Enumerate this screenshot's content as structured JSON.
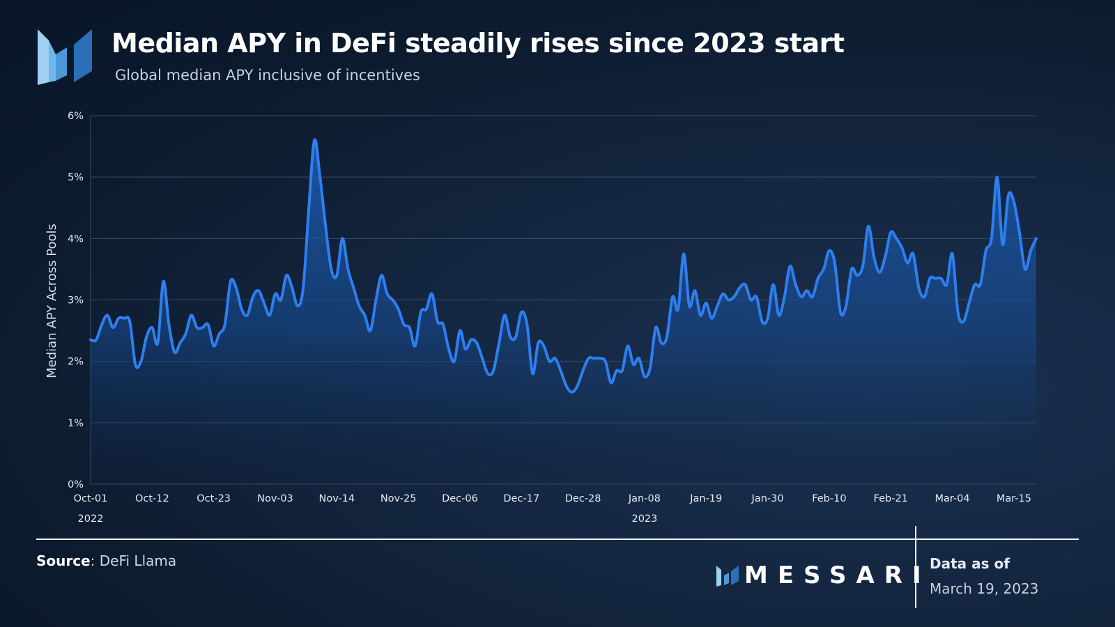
{
  "header": {
    "title": "Median APY in DeFi steadily rises since 2023 start",
    "subtitle": "Global median APY inclusive of incentives",
    "logo_icon": "messari-logo-icon"
  },
  "colors": {
    "line": "#2e7ef0",
    "fill_top": "#1e5fb8",
    "fill_bottom": "#0f2440",
    "grid": "#3a4d66",
    "logo_light": "#9fd0f2",
    "logo_mid": "#4c98d8",
    "logo_dark": "#2a6fb8"
  },
  "footer": {
    "source_label": "Source",
    "source_value": ": DeFi Llama",
    "brand": "MESSARI",
    "data_as_of_label": "Data as of",
    "data_as_of_date": "March 19, 2023"
  },
  "chart_data": {
    "type": "area",
    "title": "Median APY in DeFi steadily rises since 2023 start",
    "subtitle": "Global median APY inclusive of incentives",
    "ylabel": "Median APY Across Pools",
    "xlabel": "",
    "ylim": [
      0,
      6
    ],
    "xlim": [
      "2022-10-01",
      "2023-03-19"
    ],
    "y_ticks": [
      "0%",
      "1%",
      "2%",
      "3%",
      "4%",
      "5%",
      "6%"
    ],
    "x_ticks": [
      {
        "date": "2022-10-01",
        "label": "Oct-01",
        "year": "2022"
      },
      {
        "date": "2022-10-12",
        "label": "Oct-12"
      },
      {
        "date": "2022-10-23",
        "label": "Oct-23"
      },
      {
        "date": "2022-11-03",
        "label": "Nov-03"
      },
      {
        "date": "2022-11-14",
        "label": "Nov-14"
      },
      {
        "date": "2022-11-25",
        "label": "Nov-25"
      },
      {
        "date": "2022-12-06",
        "label": "Dec-06"
      },
      {
        "date": "2022-12-17",
        "label": "Dec-17"
      },
      {
        "date": "2022-12-28",
        "label": "Dec-28"
      },
      {
        "date": "2023-01-08",
        "label": "Jan-08",
        "year": "2023"
      },
      {
        "date": "2023-01-19",
        "label": "Jan-19"
      },
      {
        "date": "2023-01-30",
        "label": "Jan-30"
      },
      {
        "date": "2023-02-10",
        "label": "Feb-10"
      },
      {
        "date": "2023-02-21",
        "label": "Feb-21"
      },
      {
        "date": "2023-03-04",
        "label": "Mar-04"
      },
      {
        "date": "2023-03-15",
        "label": "Mar-15"
      }
    ],
    "grid": true,
    "legend": "none",
    "series": [
      {
        "points": [
          [
            "2022-10-01",
            2.35
          ],
          [
            "2022-10-02",
            2.35
          ],
          [
            "2022-10-03",
            2.6
          ],
          [
            "2022-10-04",
            2.75
          ],
          [
            "2022-10-05",
            2.55
          ],
          [
            "2022-10-06",
            2.7
          ],
          [
            "2022-10-07",
            2.7
          ],
          [
            "2022-10-08",
            2.65
          ],
          [
            "2022-10-09",
            1.95
          ],
          [
            "2022-10-10",
            2.0
          ],
          [
            "2022-10-11",
            2.4
          ],
          [
            "2022-10-12",
            2.55
          ],
          [
            "2022-10-13",
            2.3
          ],
          [
            "2022-10-14",
            3.3
          ],
          [
            "2022-10-15",
            2.6
          ],
          [
            "2022-10-16",
            2.15
          ],
          [
            "2022-10-17",
            2.3
          ],
          [
            "2022-10-18",
            2.45
          ],
          [
            "2022-10-19",
            2.75
          ],
          [
            "2022-10-20",
            2.55
          ],
          [
            "2022-10-21",
            2.55
          ],
          [
            "2022-10-22",
            2.6
          ],
          [
            "2022-10-23",
            2.25
          ],
          [
            "2022-10-24",
            2.45
          ],
          [
            "2022-10-25",
            2.6
          ],
          [
            "2022-10-26",
            3.3
          ],
          [
            "2022-10-27",
            3.2
          ],
          [
            "2022-10-28",
            2.85
          ],
          [
            "2022-10-29",
            2.75
          ],
          [
            "2022-10-30",
            3.05
          ],
          [
            "2022-10-31",
            3.15
          ],
          [
            "2022-11-01",
            2.95
          ],
          [
            "2022-11-02",
            2.75
          ],
          [
            "2022-11-03",
            3.1
          ],
          [
            "2022-11-04",
            3.0
          ],
          [
            "2022-11-05",
            3.4
          ],
          [
            "2022-11-06",
            3.2
          ],
          [
            "2022-11-07",
            2.9
          ],
          [
            "2022-11-08",
            3.2
          ],
          [
            "2022-11-09",
            4.5
          ],
          [
            "2022-11-10",
            5.6
          ],
          [
            "2022-11-11",
            5.0
          ],
          [
            "2022-11-12",
            4.2
          ],
          [
            "2022-11-13",
            3.5
          ],
          [
            "2022-11-14",
            3.4
          ],
          [
            "2022-11-15",
            4.0
          ],
          [
            "2022-11-16",
            3.5
          ],
          [
            "2022-11-17",
            3.2
          ],
          [
            "2022-11-18",
            2.9
          ],
          [
            "2022-11-19",
            2.75
          ],
          [
            "2022-11-20",
            2.5
          ],
          [
            "2022-11-21",
            3.0
          ],
          [
            "2022-11-22",
            3.4
          ],
          [
            "2022-11-23",
            3.1
          ],
          [
            "2022-11-24",
            3.0
          ],
          [
            "2022-11-25",
            2.85
          ],
          [
            "2022-11-26",
            2.6
          ],
          [
            "2022-11-27",
            2.55
          ],
          [
            "2022-11-28",
            2.25
          ],
          [
            "2022-11-29",
            2.8
          ],
          [
            "2022-11-30",
            2.85
          ],
          [
            "2022-12-01",
            3.1
          ],
          [
            "2022-12-02",
            2.65
          ],
          [
            "2022-12-03",
            2.6
          ],
          [
            "2022-12-04",
            2.2
          ],
          [
            "2022-12-05",
            2.0
          ],
          [
            "2022-12-06",
            2.5
          ],
          [
            "2022-12-07",
            2.2
          ],
          [
            "2022-12-08",
            2.35
          ],
          [
            "2022-12-09",
            2.3
          ],
          [
            "2022-12-10",
            2.05
          ],
          [
            "2022-12-11",
            1.8
          ],
          [
            "2022-12-12",
            1.85
          ],
          [
            "2022-12-13",
            2.3
          ],
          [
            "2022-12-14",
            2.75
          ],
          [
            "2022-12-15",
            2.4
          ],
          [
            "2022-12-16",
            2.4
          ],
          [
            "2022-12-17",
            2.8
          ],
          [
            "2022-12-18",
            2.6
          ],
          [
            "2022-12-19",
            1.8
          ],
          [
            "2022-12-20",
            2.3
          ],
          [
            "2022-12-21",
            2.25
          ],
          [
            "2022-12-22",
            2.0
          ],
          [
            "2022-12-23",
            2.05
          ],
          [
            "2022-12-24",
            1.85
          ],
          [
            "2022-12-25",
            1.6
          ],
          [
            "2022-12-26",
            1.5
          ],
          [
            "2022-12-27",
            1.6
          ],
          [
            "2022-12-28",
            1.85
          ],
          [
            "2022-12-29",
            2.05
          ],
          [
            "2022-12-30",
            2.05
          ],
          [
            "2022-12-31",
            2.05
          ],
          [
            "2023-01-01",
            2.0
          ],
          [
            "2023-01-02",
            1.65
          ],
          [
            "2023-01-03",
            1.85
          ],
          [
            "2023-01-04",
            1.85
          ],
          [
            "2023-01-05",
            2.25
          ],
          [
            "2023-01-06",
            1.95
          ],
          [
            "2023-01-07",
            2.05
          ],
          [
            "2023-01-08",
            1.75
          ],
          [
            "2023-01-09",
            1.9
          ],
          [
            "2023-01-10",
            2.55
          ],
          [
            "2023-01-11",
            2.3
          ],
          [
            "2023-01-12",
            2.4
          ],
          [
            "2023-01-13",
            3.05
          ],
          [
            "2023-01-14",
            2.85
          ],
          [
            "2023-01-15",
            3.75
          ],
          [
            "2023-01-16",
            2.9
          ],
          [
            "2023-01-17",
            3.15
          ],
          [
            "2023-01-18",
            2.75
          ],
          [
            "2023-01-19",
            2.95
          ],
          [
            "2023-01-20",
            2.7
          ],
          [
            "2023-01-21",
            2.9
          ],
          [
            "2023-01-22",
            3.1
          ],
          [
            "2023-01-23",
            3.0
          ],
          [
            "2023-01-24",
            3.05
          ],
          [
            "2023-01-25",
            3.2
          ],
          [
            "2023-01-26",
            3.25
          ],
          [
            "2023-01-27",
            3.0
          ],
          [
            "2023-01-28",
            3.05
          ],
          [
            "2023-01-29",
            2.65
          ],
          [
            "2023-01-30",
            2.7
          ],
          [
            "2023-01-31",
            3.25
          ],
          [
            "2023-02-01",
            2.75
          ],
          [
            "2023-02-02",
            3.05
          ],
          [
            "2023-02-03",
            3.55
          ],
          [
            "2023-02-04",
            3.25
          ],
          [
            "2023-02-05",
            3.05
          ],
          [
            "2023-02-06",
            3.15
          ],
          [
            "2023-02-07",
            3.05
          ],
          [
            "2023-02-08",
            3.35
          ],
          [
            "2023-02-09",
            3.5
          ],
          [
            "2023-02-10",
            3.8
          ],
          [
            "2023-02-11",
            3.6
          ],
          [
            "2023-02-12",
            2.8
          ],
          [
            "2023-02-13",
            2.9
          ],
          [
            "2023-02-14",
            3.5
          ],
          [
            "2023-02-15",
            3.4
          ],
          [
            "2023-02-16",
            3.55
          ],
          [
            "2023-02-17",
            4.2
          ],
          [
            "2023-02-18",
            3.7
          ],
          [
            "2023-02-19",
            3.45
          ],
          [
            "2023-02-20",
            3.7
          ],
          [
            "2023-02-21",
            4.1
          ],
          [
            "2023-02-22",
            4.0
          ],
          [
            "2023-02-23",
            3.85
          ],
          [
            "2023-02-24",
            3.6
          ],
          [
            "2023-02-25",
            3.75
          ],
          [
            "2023-02-26",
            3.2
          ],
          [
            "2023-02-27",
            3.05
          ],
          [
            "2023-02-28",
            3.35
          ],
          [
            "2023-03-01",
            3.35
          ],
          [
            "2023-03-02",
            3.35
          ],
          [
            "2023-03-03",
            3.25
          ],
          [
            "2023-03-04",
            3.75
          ],
          [
            "2023-03-05",
            2.8
          ],
          [
            "2023-03-06",
            2.65
          ],
          [
            "2023-03-07",
            2.95
          ],
          [
            "2023-03-08",
            3.25
          ],
          [
            "2023-03-09",
            3.25
          ],
          [
            "2023-03-10",
            3.8
          ],
          [
            "2023-03-11",
            4.0
          ],
          [
            "2023-03-12",
            5.0
          ],
          [
            "2023-03-13",
            3.9
          ],
          [
            "2023-03-14",
            4.7
          ],
          [
            "2023-03-15",
            4.6
          ],
          [
            "2023-03-16",
            4.1
          ],
          [
            "2023-03-17",
            3.5
          ],
          [
            "2023-03-18",
            3.8
          ],
          [
            "2023-03-19",
            4.0
          ]
        ]
      }
    ]
  }
}
